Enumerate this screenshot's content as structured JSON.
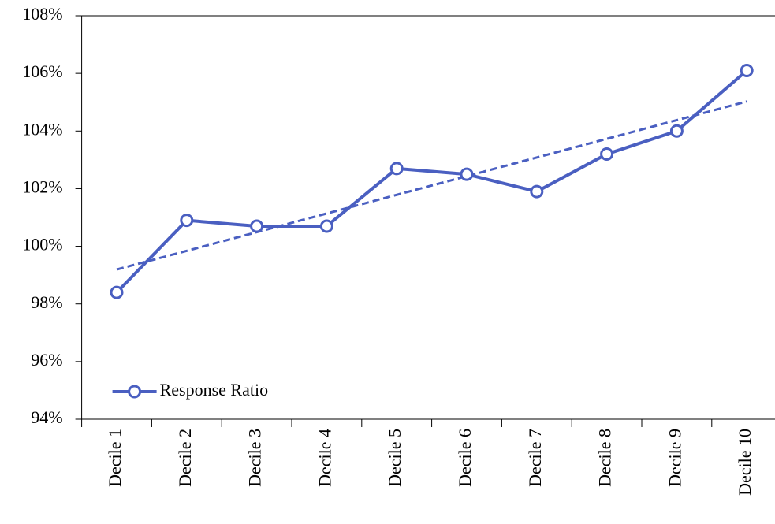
{
  "chart_data": {
    "type": "line",
    "categories": [
      "Decile 1",
      "Decile 2",
      "Decile 3",
      "Decile 4",
      "Decile 5",
      "Decile 6",
      "Decile 7",
      "Decile 8",
      "Decile 9",
      "Decile 10"
    ],
    "series": [
      {
        "name": "Response Ratio",
        "color": "#4a5fc1",
        "values": [
          98.4,
          100.9,
          100.7,
          100.7,
          102.7,
          102.5,
          101.9,
          103.2,
          104.0,
          106.1
        ]
      }
    ],
    "trendline": "linear",
    "ylim": [
      94,
      108
    ],
    "yticks": [
      {
        "value": 94,
        "label": "94%"
      },
      {
        "value": 96,
        "label": "96%"
      },
      {
        "value": 98,
        "label": "98%"
      },
      {
        "value": 100,
        "label": "100%"
      },
      {
        "value": 102,
        "label": "102%"
      },
      {
        "value": 104,
        "label": "104%"
      },
      {
        "value": 106,
        "label": "106%"
      },
      {
        "value": 108,
        "label": "108%"
      }
    ],
    "grid": false,
    "legend": "lower left"
  }
}
